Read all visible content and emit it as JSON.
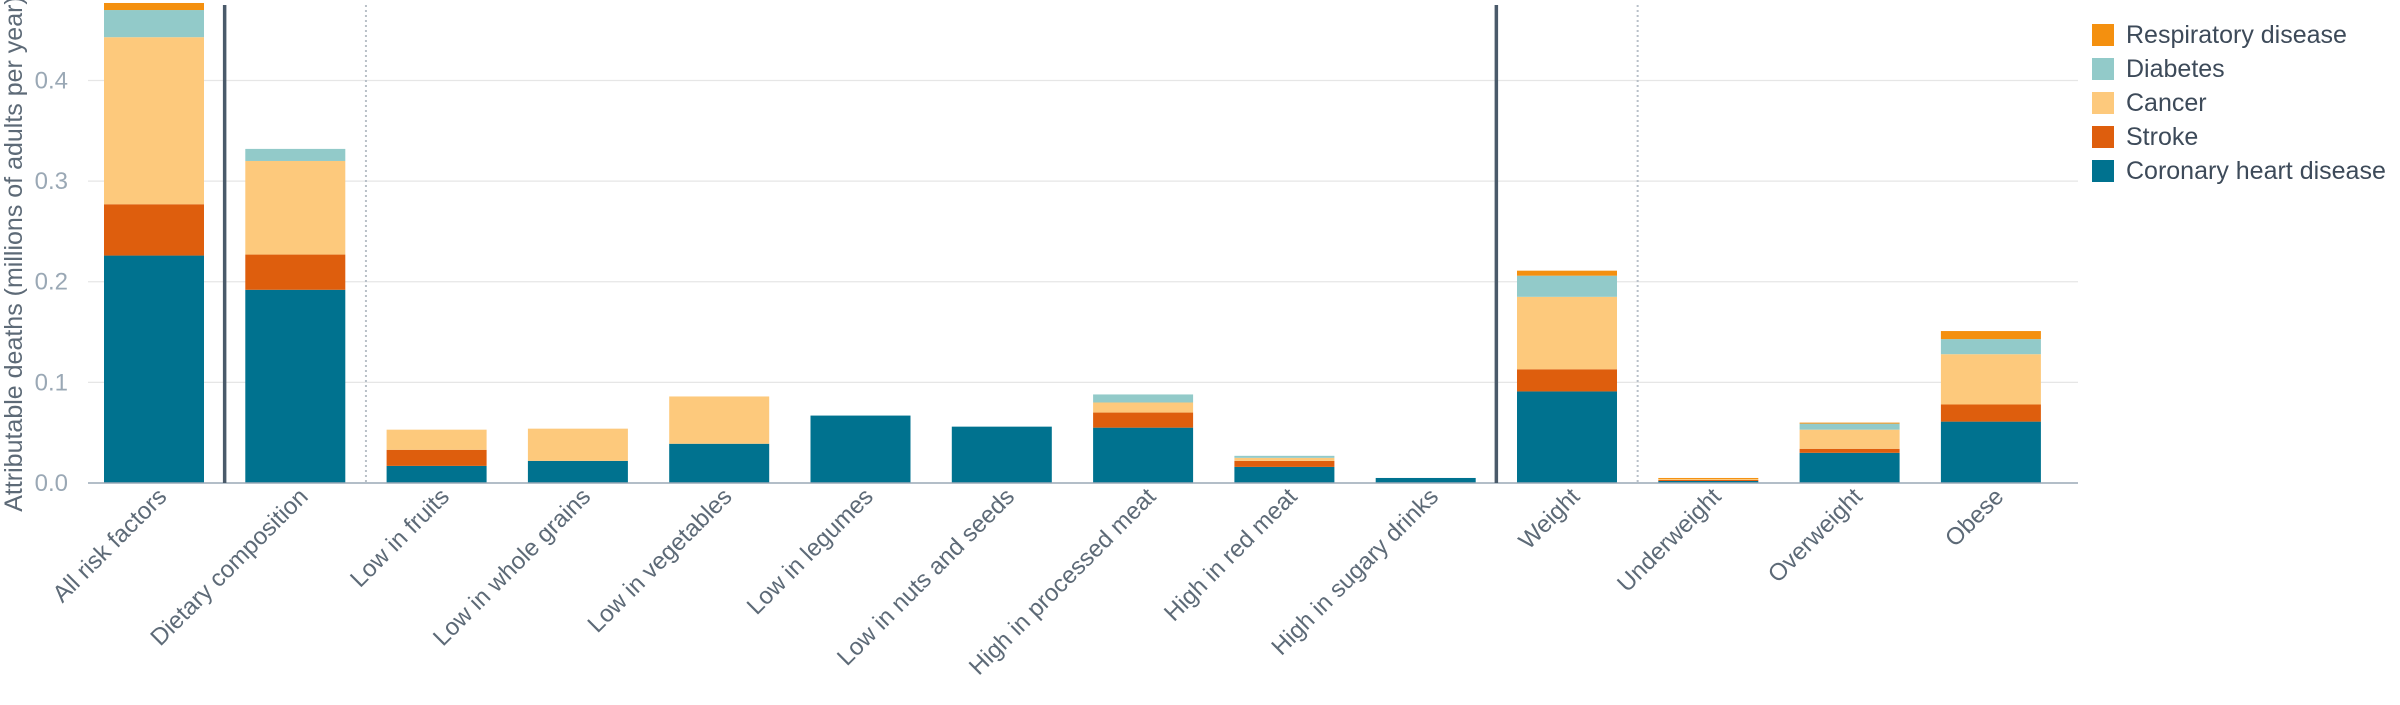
{
  "chart_data": {
    "type": "bar",
    "stacked": true,
    "title": "",
    "xlabel": "",
    "ylabel": "Attributable deaths (millions of adults per year)",
    "ylim": [
      0,
      0.475
    ],
    "yticks": [
      "0.0",
      "0.1",
      "0.2",
      "0.3",
      "0.4"
    ],
    "grid": true,
    "legend_position": "top-right",
    "categories": [
      "All risk factors",
      "Dietary composition",
      "Low in fruits",
      "Low in whole grains",
      "Low in vegetables",
      "Low in legumes",
      "Low in nuts and seeds",
      "High in processed meat",
      "High in red meat",
      "High in sugary drinks",
      "Weight",
      "Underweight",
      "Overweight",
      "Obese"
    ],
    "series": [
      {
        "name": "Coronary heart disease",
        "color": "#00728f",
        "values": [
          0.226,
          0.192,
          0.017,
          0.022,
          0.039,
          0.067,
          0.056,
          0.055,
          0.016,
          0.005,
          0.091,
          0.002,
          0.03,
          0.061
        ]
      },
      {
        "name": "Stroke",
        "color": "#de5e0d",
        "values": [
          0.051,
          0.035,
          0.016,
          0.0,
          0.0,
          0.0,
          0.0,
          0.015,
          0.006,
          0.0,
          0.022,
          0.001,
          0.004,
          0.017
        ]
      },
      {
        "name": "Cancer",
        "color": "#fdc97c",
        "values": [
          0.166,
          0.093,
          0.02,
          0.032,
          0.047,
          0.0,
          0.0,
          0.01,
          0.003,
          0.0,
          0.072,
          0.001,
          0.019,
          0.05
        ]
      },
      {
        "name": "Diabetes",
        "color": "#92cac9",
        "values": [
          0.027,
          0.012,
          0.0,
          0.0,
          0.0,
          0.0,
          0.0,
          0.008,
          0.002,
          0.0,
          0.021,
          0.0,
          0.006,
          0.015
        ]
      },
      {
        "name": "Respiratory disease",
        "color": "#f4900f",
        "values": [
          0.007,
          0.0,
          0.0,
          0.0,
          0.0,
          0.0,
          0.0,
          0.0,
          0.0,
          0.0,
          0.005,
          0.001,
          0.001,
          0.008
        ]
      }
    ],
    "group_separators": [
      {
        "after_category": "All risk factors",
        "style": "solid"
      },
      {
        "after_category": "Dietary composition",
        "style": "dotted"
      },
      {
        "after_category": "High in sugary drinks",
        "style": "solid"
      },
      {
        "after_category": "Weight",
        "style": "dotted"
      }
    ],
    "legend_order": [
      "Respiratory disease",
      "Diabetes",
      "Cancer",
      "Stroke",
      "Coronary heart disease"
    ]
  }
}
